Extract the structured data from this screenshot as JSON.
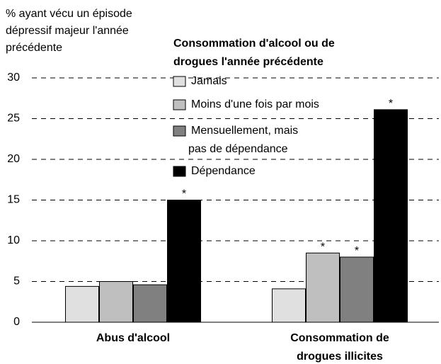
{
  "chart_data": {
    "type": "bar",
    "y_label": "% ayant vécu un épisode\ndépressif majeur l'année\nprécédente",
    "legend_title": "Consommation d'alcool ou de\ndrogues l'année précédente",
    "categories": [
      "Abus d'alcool",
      "Consommation de\ndrogues illicites"
    ],
    "series": [
      {
        "name": "Jamais",
        "color": "#e0e0e0",
        "values": [
          4.4,
          4.1
        ]
      },
      {
        "name": "Moins d'une fois par mois",
        "color": "#bfbfbf",
        "values": [
          5.0,
          8.5
        ]
      },
      {
        "name": "Mensuellement, mais\npas de dépendance",
        "color": "#808080",
        "values": [
          4.6,
          8.0
        ]
      },
      {
        "name": "Dépendance",
        "color": "#000000",
        "values": [
          15.0,
          26.1
        ]
      }
    ],
    "annotations": [
      {
        "series": 3,
        "index": 0,
        "text": "*"
      },
      {
        "series": 1,
        "index": 1,
        "text": "*"
      },
      {
        "series": 2,
        "index": 1,
        "text": "*"
      },
      {
        "series": 3,
        "index": 1,
        "text": "*"
      }
    ],
    "ylim": [
      0,
      30
    ],
    "yticks": [
      0,
      5,
      10,
      15,
      20,
      25,
      30
    ],
    "grid": true
  }
}
